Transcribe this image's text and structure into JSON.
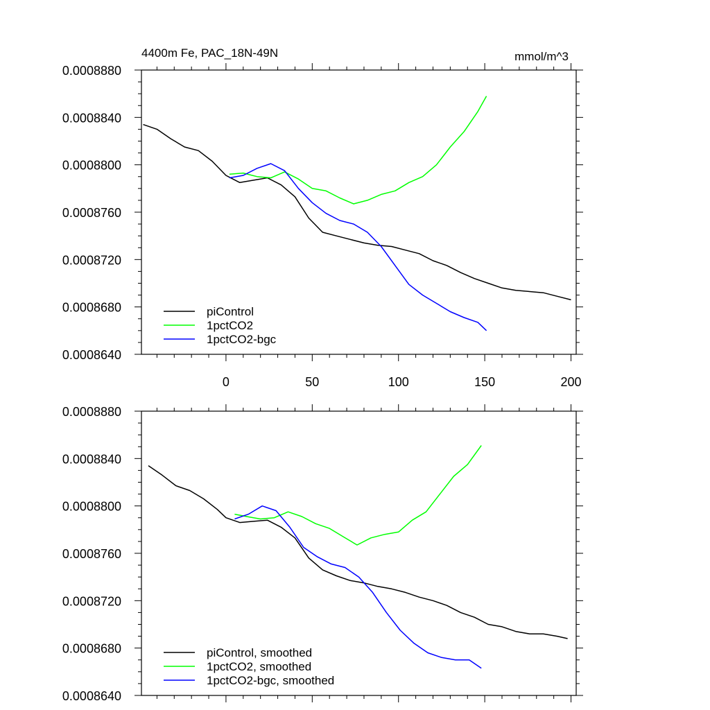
{
  "figure": {
    "title_left": "4400m Fe, PAC_18N-49N",
    "title_right": "mmol/m^3"
  },
  "chart_data": [
    {
      "type": "line",
      "xlim": [
        -49,
        203
      ],
      "ylim": [
        0.000864,
        0.000888
      ],
      "xticks": [
        0,
        50,
        100,
        150,
        200
      ],
      "xtick_labels": [
        "0",
        "50",
        "100",
        "150",
        "200"
      ],
      "yticks": [
        0.000864,
        0.000868,
        0.000872,
        0.000876,
        0.00088,
        0.000884,
        0.000888
      ],
      "ytick_labels": [
        "0.0008640",
        "0.0008680",
        "0.0008720",
        "0.0008760",
        "0.0008800",
        "0.0008840",
        "0.0008880"
      ],
      "legend_position": "bottom-left",
      "grid": false,
      "series": [
        {
          "name": "piControl",
          "color": "#000000",
          "x": [
            -48,
            -40,
            -32,
            -24,
            -16,
            -8,
            0,
            8,
            16,
            24,
            32,
            40,
            48,
            56,
            64,
            72,
            80,
            88,
            96,
            104,
            112,
            120,
            128,
            136,
            144,
            152,
            160,
            168,
            176,
            184,
            192,
            200
          ],
          "y": [
            0.0008834,
            0.000883,
            0.0008822,
            0.0008815,
            0.0008812,
            0.0008803,
            0.0008791,
            0.0008785,
            0.0008787,
            0.0008789,
            0.0008783,
            0.0008773,
            0.0008755,
            0.0008743,
            0.000874,
            0.0008737,
            0.0008734,
            0.0008732,
            0.0008731,
            0.0008728,
            0.0008725,
            0.0008719,
            0.0008715,
            0.0008709,
            0.0008704,
            0.00087,
            0.0008696,
            0.0008694,
            0.0008693,
            0.0008692,
            0.0008689,
            0.0008686
          ]
        },
        {
          "name": "1pctCO2",
          "color": "#00ff00",
          "x": [
            2,
            10,
            18,
            26,
            34,
            42,
            50,
            58,
            66,
            74,
            82,
            90,
            98,
            106,
            114,
            122,
            130,
            138,
            146,
            151
          ],
          "y": [
            0.0008792,
            0.0008793,
            0.000879,
            0.0008789,
            0.0008794,
            0.0008788,
            0.000878,
            0.0008778,
            0.0008772,
            0.0008767,
            0.000877,
            0.0008775,
            0.0008778,
            0.0008785,
            0.000879,
            0.00088,
            0.0008815,
            0.0008828,
            0.0008845,
            0.0008858
          ]
        },
        {
          "name": "1pctCO2-bgc",
          "color": "#0000ff",
          "x": [
            2,
            10,
            18,
            26,
            34,
            42,
            50,
            58,
            66,
            74,
            82,
            90,
            98,
            106,
            114,
            122,
            130,
            138,
            146,
            151
          ],
          "y": [
            0.0008789,
            0.0008791,
            0.0008797,
            0.0008801,
            0.0008795,
            0.000878,
            0.0008768,
            0.0008759,
            0.0008753,
            0.000875,
            0.0008743,
            0.0008731,
            0.0008715,
            0.0008699,
            0.000869,
            0.0008683,
            0.0008676,
            0.0008671,
            0.0008667,
            0.000866
          ]
        }
      ]
    },
    {
      "type": "line",
      "xlim": [
        -49,
        203
      ],
      "ylim": [
        0.000864,
        0.000888
      ],
      "xticks": [
        0,
        50,
        100,
        150,
        200
      ],
      "yticks": [
        0.000864,
        0.000868,
        0.000872,
        0.000876,
        0.00088,
        0.000884,
        0.000888
      ],
      "ytick_labels": [
        "0.0008640",
        "0.0008680",
        "0.0008720",
        "0.0008760",
        "0.0008800",
        "0.0008840",
        "0.0008880"
      ],
      "legend_position": "bottom-left",
      "grid": false,
      "series": [
        {
          "name": "piControl, smoothed",
          "color": "#000000",
          "x": [
            -45,
            -37,
            -29,
            -21,
            -13,
            -5,
            0,
            8,
            16,
            24,
            32,
            40,
            48,
            56,
            64,
            72,
            80,
            88,
            96,
            104,
            112,
            120,
            128,
            136,
            144,
            152,
            160,
            168,
            176,
            184,
            192,
            198
          ],
          "y": [
            0.0008834,
            0.0008826,
            0.0008817,
            0.0008813,
            0.0008806,
            0.0008797,
            0.000879,
            0.0008786,
            0.0008787,
            0.0008788,
            0.0008782,
            0.0008773,
            0.0008756,
            0.0008746,
            0.0008741,
            0.0008737,
            0.0008735,
            0.0008732,
            0.000873,
            0.0008727,
            0.0008723,
            0.000872,
            0.0008716,
            0.000871,
            0.0008706,
            0.00087,
            0.0008698,
            0.0008694,
            0.0008692,
            0.0008692,
            0.000869,
            0.0008688
          ]
        },
        {
          "name": "1pctCO2, smoothed",
          "color": "#00ff00",
          "x": [
            5,
            12,
            20,
            28,
            36,
            44,
            52,
            60,
            68,
            76,
            84,
            92,
            100,
            108,
            116,
            124,
            132,
            140,
            148
          ],
          "y": [
            0.0008793,
            0.0008791,
            0.0008789,
            0.000879,
            0.0008795,
            0.0008791,
            0.0008785,
            0.0008781,
            0.0008774,
            0.0008767,
            0.0008773,
            0.0008776,
            0.0008778,
            0.0008788,
            0.0008795,
            0.000881,
            0.0008825,
            0.0008835,
            0.0008851
          ]
        },
        {
          "name": "1pctCO2-bgc, smoothed",
          "color": "#0000ff",
          "x": [
            5,
            13,
            21,
            29,
            37,
            45,
            53,
            61,
            69,
            77,
            85,
            93,
            101,
            109,
            117,
            125,
            133,
            141,
            148
          ],
          "y": [
            0.0008789,
            0.0008793,
            0.00088,
            0.0008796,
            0.0008782,
            0.0008765,
            0.0008757,
            0.0008751,
            0.0008748,
            0.000874,
            0.0008727,
            0.000871,
            0.0008695,
            0.0008684,
            0.0008676,
            0.0008672,
            0.000867,
            0.000867,
            0.0008663
          ]
        }
      ]
    }
  ]
}
